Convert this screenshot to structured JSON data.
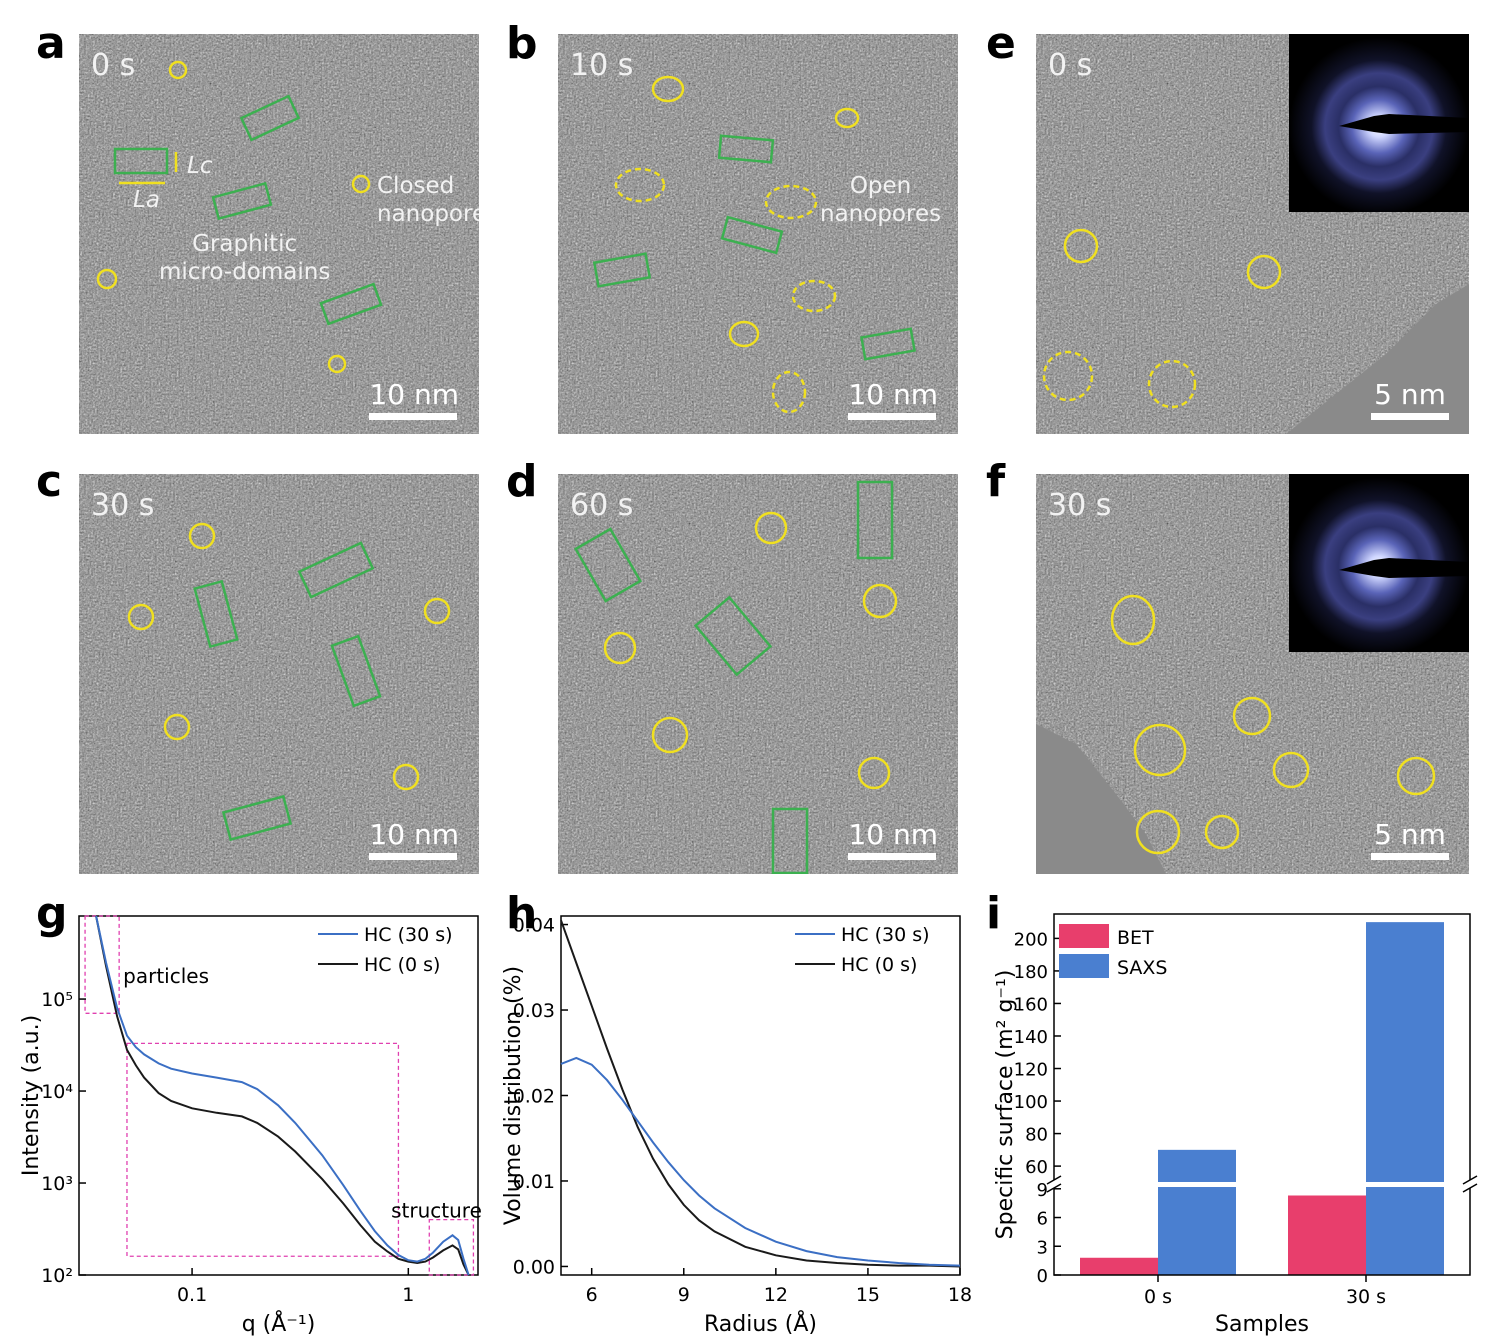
{
  "panels": {
    "a": {
      "label": "a",
      "time": "0 s",
      "scale": "10 nm",
      "annotations": {
        "lc": "Lc",
        "la": "La",
        "closed": "Closed\nnanopores",
        "graphitic": "Graphitic\nmicro-domains"
      }
    },
    "b": {
      "label": "b",
      "time": "10 s",
      "scale": "10 nm",
      "annotations": {
        "open": "Open\nnanopores"
      }
    },
    "c": {
      "label": "c",
      "time": "30 s",
      "scale": "10 nm"
    },
    "d": {
      "label": "d",
      "time": "60 s",
      "scale": "10 nm"
    },
    "e": {
      "label": "e",
      "time": "0 s",
      "scale": "5 nm"
    },
    "f": {
      "label": "f",
      "time": "30 s",
      "scale": "5 nm"
    },
    "g": {
      "label": "g"
    },
    "h": {
      "label": "h"
    },
    "i": {
      "label": "i"
    }
  },
  "colors": {
    "hc30": "#3b6fc4",
    "hc0": "#1a1a1a",
    "bet": "#e83e6c",
    "saxs": "#4a7fd0",
    "box": "#e040b0",
    "pore": "#f0e020",
    "domain": "#3cb050"
  },
  "chart_data": [
    {
      "type": "line",
      "id": "g",
      "xlabel": "q (Å⁻¹)",
      "ylabel": "Intensity (a.u.)",
      "xscale": "log",
      "yscale": "log",
      "xlim": [
        0.03,
        2.1
      ],
      "ylim": [
        100,
        800000
      ],
      "xticks": [
        {
          "v": 0.1,
          "label": "0.1"
        },
        {
          "v": 1,
          "label": "1"
        }
      ],
      "yticks": [
        {
          "v": 100,
          "label": "10²"
        },
        {
          "v": 1000,
          "label": "10³"
        },
        {
          "v": 10000,
          "label": "10⁴"
        },
        {
          "v": 100000,
          "label": "10⁵"
        }
      ],
      "annotations": [
        "particles",
        "structure"
      ],
      "series": [
        {
          "name": "HC (30 s)",
          "color": "#3b6fc4",
          "x": [
            0.036,
            0.04,
            0.045,
            0.05,
            0.055,
            0.06,
            0.07,
            0.08,
            0.1,
            0.13,
            0.17,
            0.2,
            0.25,
            0.3,
            0.4,
            0.5,
            0.6,
            0.7,
            0.8,
            0.9,
            1.0,
            1.1,
            1.2,
            1.3,
            1.45,
            1.6,
            1.7,
            1.8,
            1.9
          ],
          "y": [
            800000,
            250000,
            80000,
            40000,
            30000,
            25000,
            20000,
            17500,
            15500,
            14000,
            12500,
            10500,
            7000,
            4500,
            2000,
            950,
            500,
            300,
            210,
            165,
            145,
            140,
            150,
            175,
            230,
            270,
            240,
            150,
            100
          ]
        },
        {
          "name": "HC (0 s)",
          "color": "#1a1a1a",
          "x": [
            0.036,
            0.04,
            0.045,
            0.05,
            0.055,
            0.06,
            0.07,
            0.08,
            0.1,
            0.13,
            0.17,
            0.2,
            0.25,
            0.3,
            0.4,
            0.5,
            0.6,
            0.7,
            0.8,
            0.9,
            1.0,
            1.1,
            1.2,
            1.3,
            1.45,
            1.6,
            1.7,
            1.8,
            1.9
          ],
          "y": [
            800000,
            230000,
            65000,
            28000,
            19000,
            14000,
            9500,
            7800,
            6500,
            5800,
            5300,
            4500,
            3200,
            2200,
            1100,
            600,
            350,
            230,
            180,
            150,
            140,
            135,
            140,
            155,
            185,
            210,
            190,
            130,
            100
          ]
        }
      ],
      "legend": "top-right"
    },
    {
      "type": "line",
      "id": "h",
      "xlabel": "Radius (Å)",
      "ylabel": "Volume distribution (%)",
      "xlim": [
        5,
        18
      ],
      "ylim": [
        -0.001,
        0.041
      ],
      "xticks": [
        6,
        9,
        12,
        15,
        18
      ],
      "yticks": [
        {
          "v": 0,
          "label": "0.00"
        },
        {
          "v": 0.01,
          "label": "0.01"
        },
        {
          "v": 0.02,
          "label": "0.02"
        },
        {
          "v": 0.03,
          "label": "0.03"
        },
        {
          "v": 0.04,
          "label": "0.04"
        }
      ],
      "series": [
        {
          "name": "HC (30 s)",
          "color": "#3b6fc4",
          "x": [
            5,
            5.5,
            6,
            6.5,
            7,
            7.5,
            8,
            8.5,
            9,
            9.5,
            10,
            11,
            12,
            13,
            14,
            15,
            16,
            17,
            18
          ],
          "y": [
            0.0237,
            0.0244,
            0.0236,
            0.0218,
            0.0195,
            0.017,
            0.0145,
            0.0122,
            0.0101,
            0.0083,
            0.0068,
            0.0045,
            0.0029,
            0.0018,
            0.0011,
            0.0007,
            0.0004,
            0.0002,
            0.0001
          ]
        },
        {
          "name": "HC (0 s)",
          "color": "#1a1a1a",
          "x": [
            5,
            5.5,
            6,
            6.5,
            7,
            7.5,
            8,
            8.5,
            9,
            9.5,
            10,
            11,
            12,
            13,
            14,
            15,
            16,
            17,
            18
          ],
          "y": [
            0.0405,
            0.0355,
            0.0305,
            0.0255,
            0.0207,
            0.0163,
            0.0126,
            0.0096,
            0.0072,
            0.0054,
            0.0041,
            0.0023,
            0.0013,
            0.0007,
            0.0004,
            0.0002,
            0.0001,
            0.0001,
            0.0
          ]
        }
      ],
      "legend": "top-right"
    },
    {
      "type": "bar",
      "id": "i",
      "xlabel": "Samples",
      "ylabel": "Specific surface (m² g⁻¹)",
      "categories": [
        "0 s",
        "30 s"
      ],
      "axis_break": [
        9,
        50
      ],
      "yticks_low": [
        0,
        3,
        6,
        9
      ],
      "yticks_high": [
        60,
        80,
        100,
        120,
        140,
        160,
        180,
        200
      ],
      "ylim_low": [
        0,
        9.5
      ],
      "ylim_high": [
        49,
        215
      ],
      "series": [
        {
          "name": "BET",
          "color": "#e83e6c",
          "values": [
            1.8,
            8.3
          ]
        },
        {
          "name": "SAXS",
          "color": "#4a7fd0",
          "values": [
            70,
            210
          ]
        }
      ],
      "legend": "top-left"
    }
  ]
}
